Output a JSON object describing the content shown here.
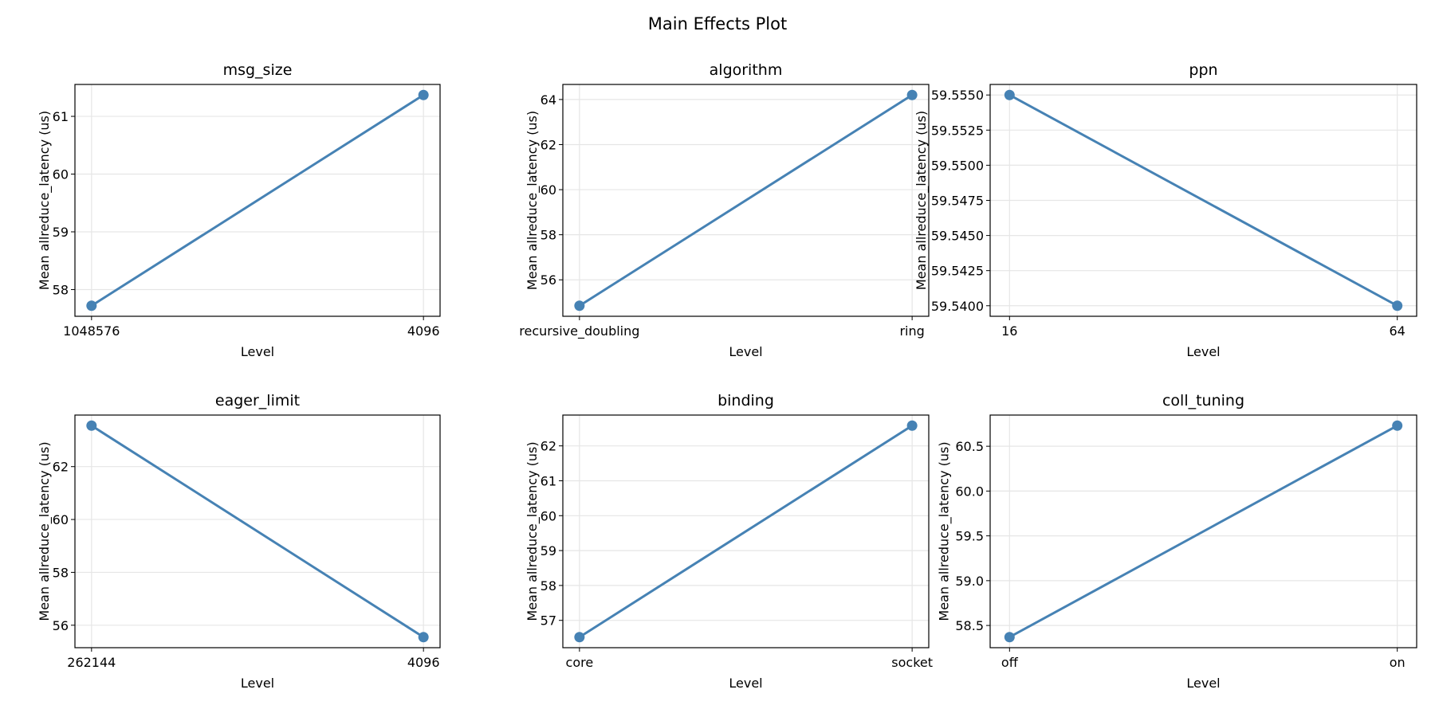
{
  "chart_data": {
    "title": "Main Effects Plot",
    "color": "#4682b4",
    "grid": true,
    "panels": [
      {
        "type": "line",
        "title": "msg_size",
        "xlabel": "Level",
        "ylabel": "Mean allreduce_latency (us)",
        "categories": [
          "1048576",
          "4096"
        ],
        "values": [
          57.72,
          61.37
        ],
        "yticks": [
          "58",
          "59",
          "60",
          "61"
        ],
        "ytick_values": [
          58,
          59,
          60,
          61
        ]
      },
      {
        "type": "line",
        "title": "algorithm",
        "xlabel": "Level",
        "ylabel": "Mean allreduce_latency (us)",
        "categories": [
          "recursive_doubling",
          "ring"
        ],
        "values": [
          54.85,
          64.2
        ],
        "yticks": [
          "56",
          "58",
          "60",
          "62",
          "64"
        ],
        "ytick_values": [
          56,
          58,
          60,
          62,
          64
        ]
      },
      {
        "type": "line",
        "title": "ppn",
        "xlabel": "Level",
        "ylabel": "Mean allreduce_latency (us)",
        "categories": [
          "16",
          "64"
        ],
        "values": [
          59.555,
          59.54
        ],
        "yticks": [
          "59.5400",
          "59.5425",
          "59.5450",
          "59.5475",
          "59.5500",
          "59.5525",
          "59.5550"
        ],
        "ytick_values": [
          59.54,
          59.5425,
          59.545,
          59.5475,
          59.55,
          59.5525,
          59.555
        ]
      },
      {
        "type": "line",
        "title": "eager_limit",
        "xlabel": "Level",
        "ylabel": "Mean allreduce_latency (us)",
        "categories": [
          "262144",
          "4096"
        ],
        "values": [
          63.55,
          55.55
        ],
        "yticks": [
          "56",
          "58",
          "60",
          "62"
        ],
        "ytick_values": [
          56,
          58,
          60,
          62
        ]
      },
      {
        "type": "line",
        "title": "binding",
        "xlabel": "Level",
        "ylabel": "Mean allreduce_latency (us)",
        "categories": [
          "core",
          "socket"
        ],
        "values": [
          56.52,
          62.58
        ],
        "yticks": [
          "57",
          "58",
          "59",
          "60",
          "61",
          "62"
        ],
        "ytick_values": [
          57,
          58,
          59,
          60,
          61,
          62
        ]
      },
      {
        "type": "line",
        "title": "coll_tuning",
        "xlabel": "Level",
        "ylabel": "Mean allreduce_latency (us)",
        "categories": [
          "off",
          "on"
        ],
        "values": [
          58.37,
          60.73
        ],
        "yticks": [
          "58.5",
          "59.0",
          "59.5",
          "60.0",
          "60.5"
        ],
        "ytick_values": [
          58.5,
          59,
          59.5,
          60,
          60.5
        ]
      }
    ]
  }
}
